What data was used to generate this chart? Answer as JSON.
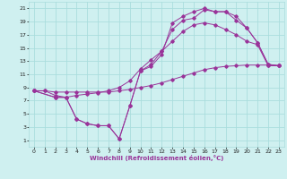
{
  "xlabel": "Windchill (Refroidissement éolien,°C)",
  "bg_color": "#cff0f0",
  "line_color": "#993399",
  "grid_color": "#aadddd",
  "xlim": [
    -0.5,
    23.5
  ],
  "ylim": [
    0,
    22
  ],
  "xticks": [
    0,
    1,
    2,
    3,
    4,
    5,
    6,
    7,
    8,
    9,
    10,
    11,
    12,
    13,
    14,
    15,
    16,
    17,
    18,
    19,
    20,
    21,
    22,
    23
  ],
  "yticks": [
    1,
    3,
    5,
    7,
    9,
    11,
    13,
    15,
    17,
    19,
    21
  ],
  "line1_x": [
    0,
    1,
    2,
    3,
    4,
    5,
    6,
    7,
    8,
    9,
    10,
    11,
    12,
    13,
    14,
    15,
    16,
    17,
    18,
    19,
    20,
    21,
    22,
    23
  ],
  "line1_y": [
    8.5,
    8.5,
    8.3,
    8.3,
    8.3,
    8.3,
    8.3,
    8.3,
    8.5,
    8.7,
    9.0,
    9.3,
    9.7,
    10.2,
    10.7,
    11.2,
    11.7,
    12.0,
    12.2,
    12.3,
    12.4,
    12.4,
    12.4,
    12.3
  ],
  "line2_x": [
    0,
    1,
    2,
    3,
    4,
    5,
    6,
    7,
    8,
    9,
    10,
    11,
    12,
    13,
    14,
    15,
    16,
    17,
    18,
    19,
    20,
    21,
    22,
    23
  ],
  "line2_y": [
    8.5,
    8.5,
    7.8,
    7.5,
    7.8,
    8.0,
    8.2,
    8.5,
    9.0,
    10.0,
    11.8,
    13.2,
    14.5,
    16.0,
    17.5,
    18.5,
    18.8,
    18.5,
    17.8,
    17.0,
    16.0,
    15.5,
    12.3,
    12.3
  ],
  "line3_x": [
    0,
    2,
    3,
    4,
    5,
    6,
    7,
    8,
    9,
    10,
    11,
    12,
    13,
    14,
    15,
    16,
    17,
    18,
    19,
    20,
    21,
    22,
    23
  ],
  "line3_y": [
    8.5,
    7.5,
    7.5,
    4.2,
    3.5,
    3.2,
    3.2,
    1.2,
    6.2,
    11.5,
    12.5,
    14.5,
    17.8,
    19.2,
    19.5,
    20.8,
    20.5,
    20.5,
    19.8,
    18.0,
    15.8,
    12.5,
    12.3
  ],
  "line4_x": [
    0,
    2,
    3,
    4,
    5,
    6,
    7,
    8,
    9,
    10,
    11,
    12,
    13,
    14,
    15,
    16,
    17,
    18,
    19,
    20,
    21,
    22,
    23
  ],
  "line4_y": [
    8.5,
    7.5,
    7.5,
    4.2,
    3.5,
    3.2,
    3.2,
    1.2,
    6.2,
    11.5,
    12.2,
    14.0,
    18.8,
    19.8,
    20.5,
    21.0,
    20.5,
    20.5,
    19.2,
    18.0,
    15.8,
    12.5,
    12.3
  ]
}
